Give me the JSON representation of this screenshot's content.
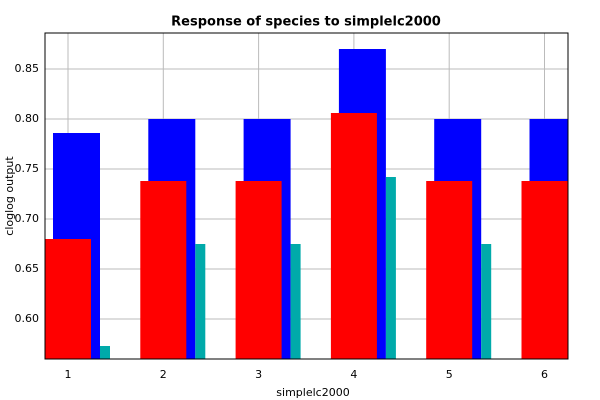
{
  "chart_data": {
    "type": "bar",
    "title": "Response of species to simplelc2000",
    "x_label": "simplelc2000",
    "y_label": "cloglog output",
    "categories": [
      "1",
      "2",
      "3",
      "4",
      "5",
      "6"
    ],
    "series": [
      {
        "color": "#0000ff",
        "values": [
          0.786,
          0.8,
          0.8,
          0.87,
          0.8,
          0.8
        ]
      },
      {
        "color": "#ff0000",
        "values": [
          0.68,
          0.738,
          0.738,
          0.806,
          0.738,
          0.738
        ]
      },
      {
        "color": "#00aaaa",
        "values": [
          0.573,
          0.675,
          0.675,
          0.742,
          0.675,
          null
        ]
      }
    ],
    "ylim": [
      0.56,
      0.886
    ],
    "yticks": [
      {
        "value": 0.6,
        "label": "0.60"
      },
      {
        "value": 0.65,
        "label": "0.65"
      },
      {
        "value": 0.7,
        "label": "0.70"
      },
      {
        "value": 0.75,
        "label": "0.75"
      },
      {
        "value": 0.8,
        "label": "0.80"
      },
      {
        "value": 0.85,
        "label": "0.85"
      }
    ],
    "grid": true
  }
}
